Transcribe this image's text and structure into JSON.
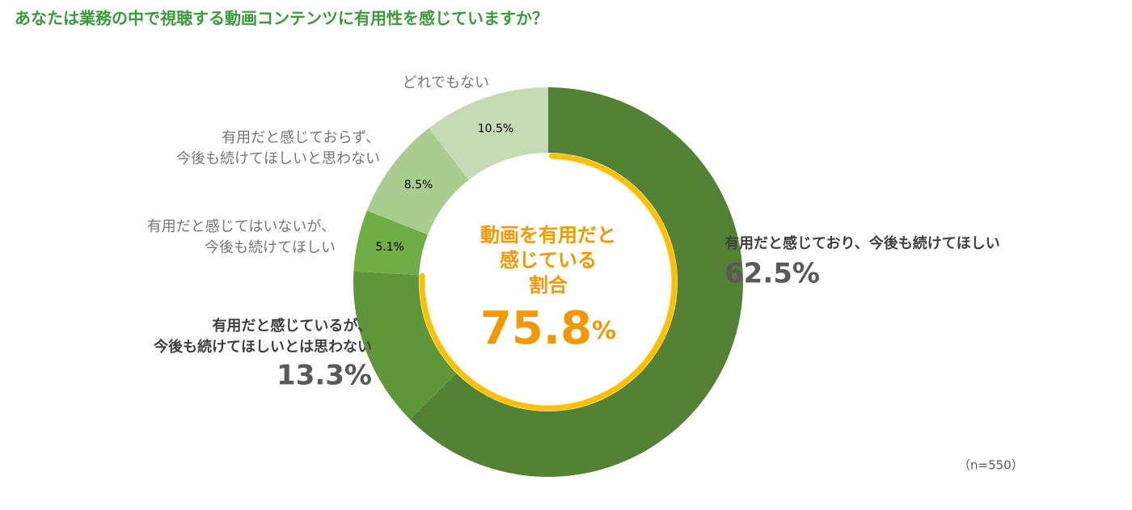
{
  "chart_data": {
    "type": "donut",
    "title": "あなたは業務の中で視聴する動画コンテンツに有用性を感じていますか？",
    "categories": [
      [
        "有用だと感じており、今後も続けてほしい"
      ],
      [
        "有用だと感じているが、",
        "今後も続けてほしいとは思わない"
      ],
      [
        "有用だと感じてはいないが、",
        "今後も続けてほしい"
      ],
      [
        "有用だと感じておらず、",
        "今後も続けてほしいと思わない"
      ],
      [
        "どれでもない"
      ]
    ],
    "values": [
      62.5,
      13.3,
      5.1,
      8.5,
      10.5
    ],
    "value_labels": [
      "62.5%",
      "13.3%",
      "5.1%",
      "8.5%",
      "10.5%"
    ],
    "colors": [
      "#548235",
      "#5e9639",
      "#70ad47",
      "#a9cd8e",
      "#c5dbb5"
    ],
    "center": {
      "lines": [
        "動画を有用だと",
        "感じている",
        "割合"
      ],
      "value": 75.8,
      "unit": "%",
      "color": "#f39800",
      "arc_color": "#ffc000"
    },
    "note": "（n=550）"
  }
}
